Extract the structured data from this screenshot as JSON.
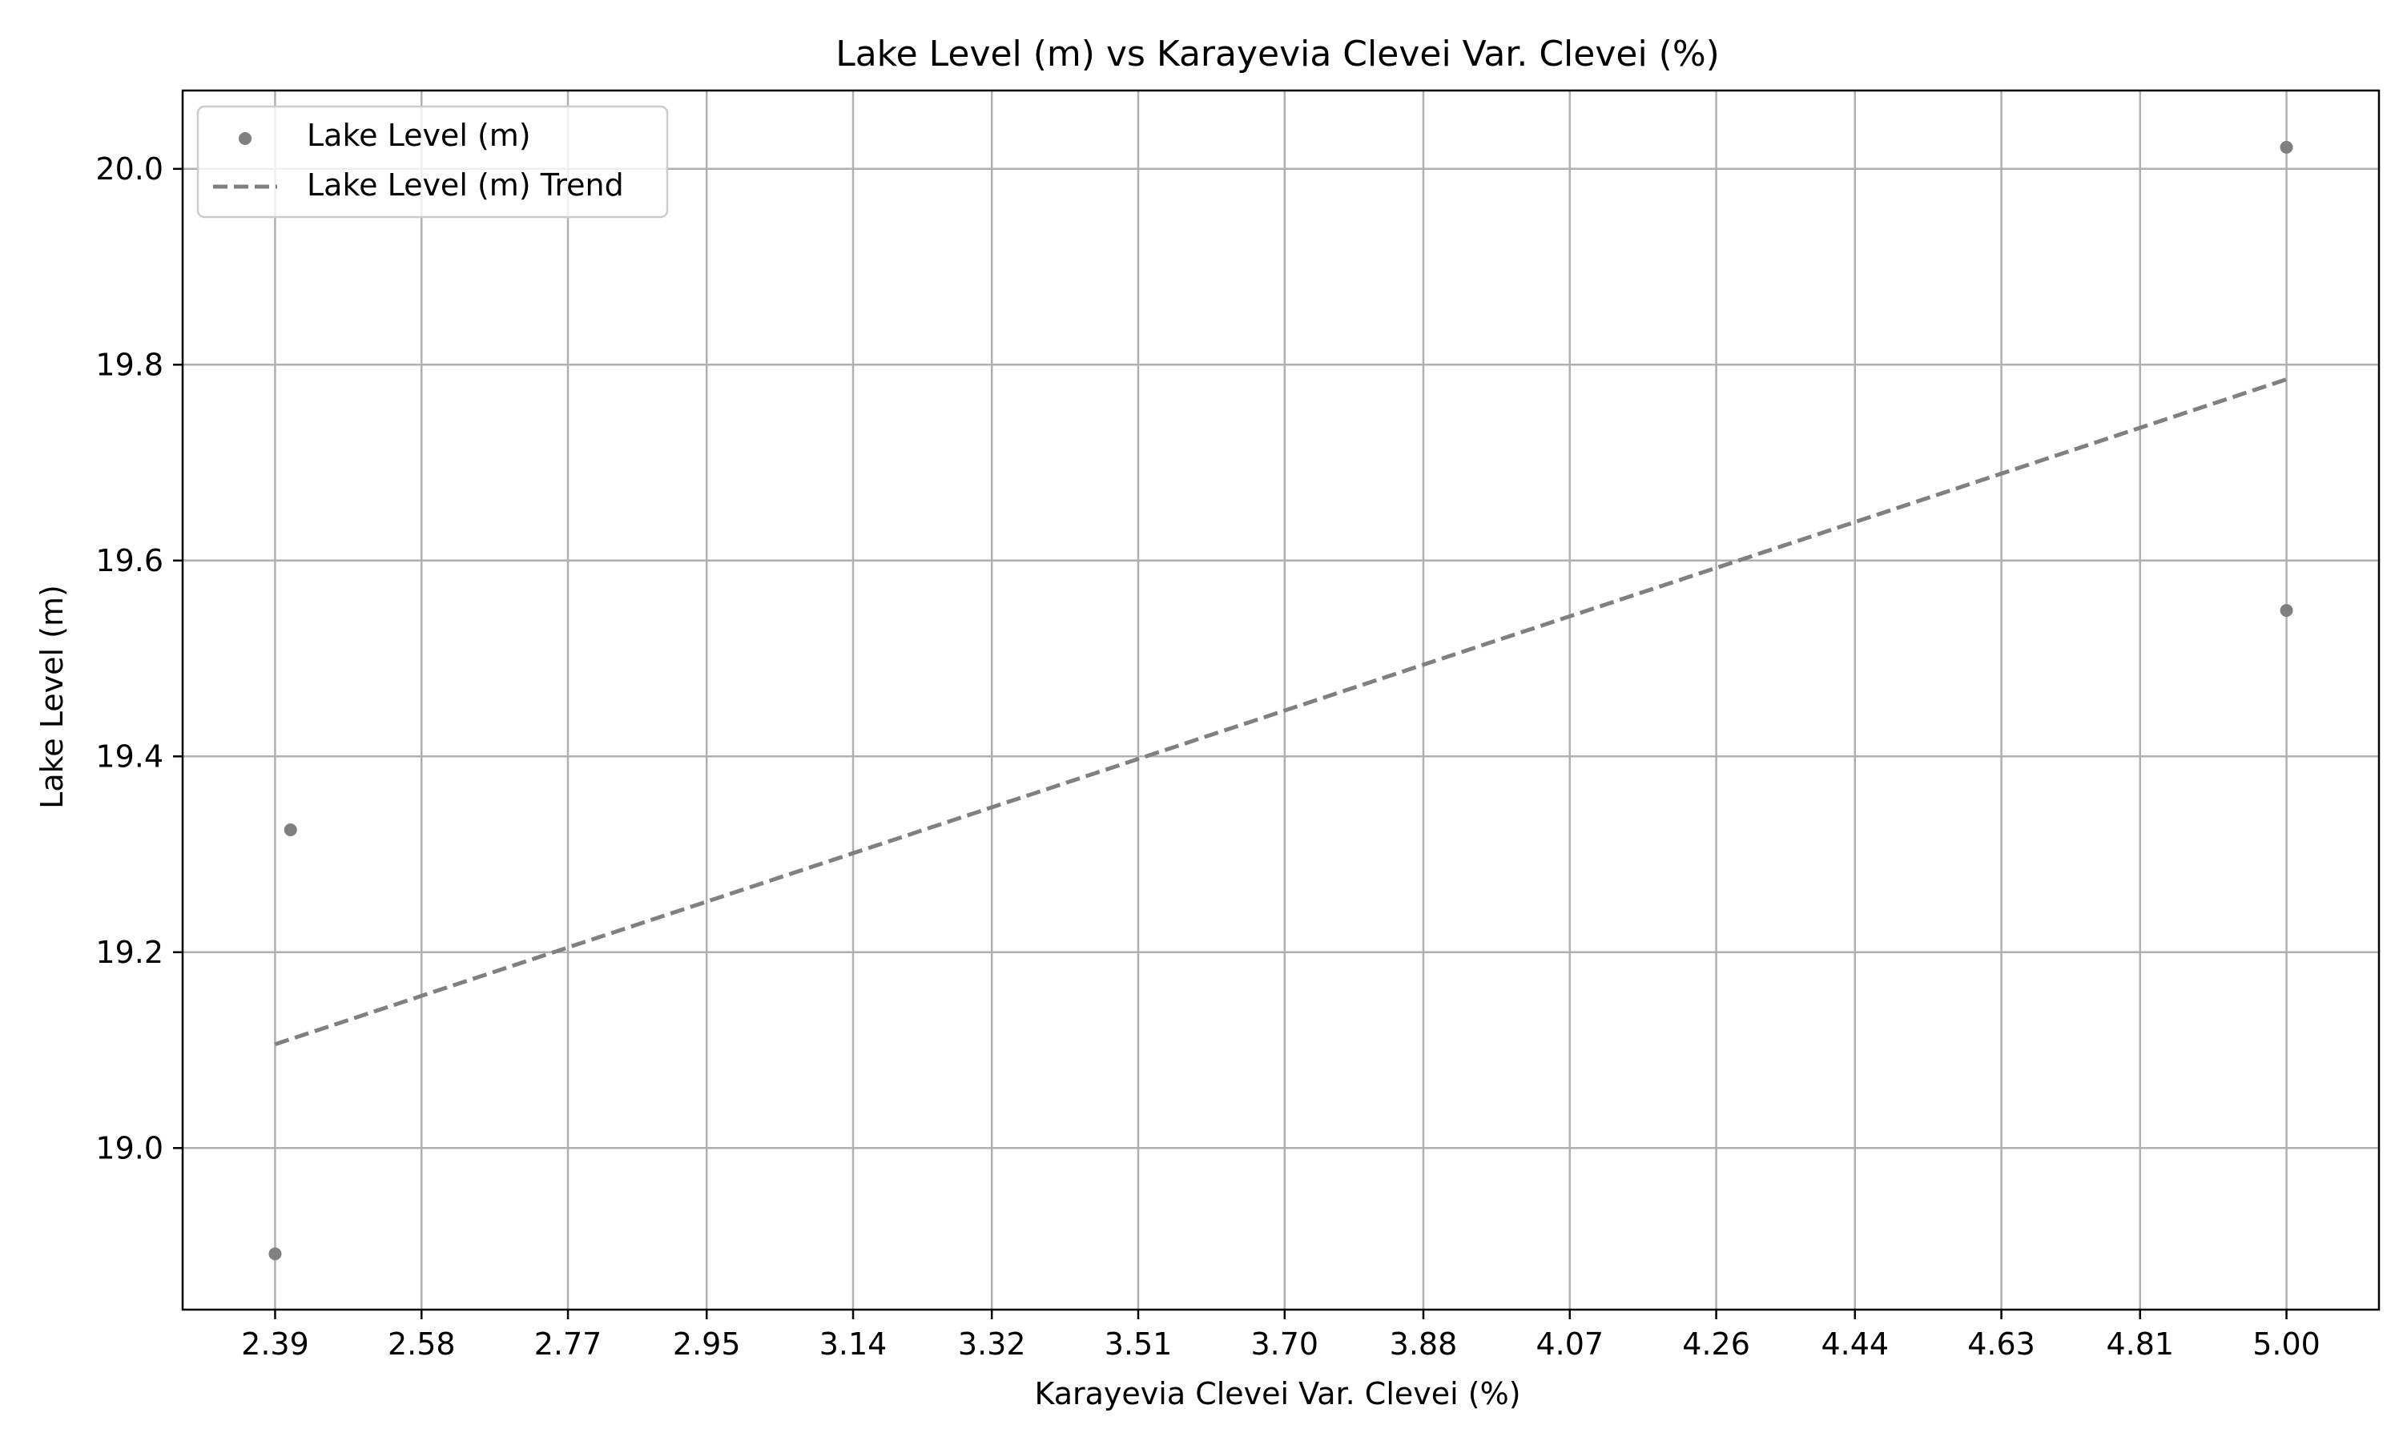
{
  "chart_data": {
    "type": "scatter",
    "title": "Lake Level (m) vs Karayevia Clevei Var. Clevei (%)",
    "xlabel": "Karayevia Clevei Var. Clevei (%)",
    "ylabel": "Lake Level (m)",
    "xlim": [
      2.27,
      5.12
    ],
    "ylim": [
      18.835,
      20.08
    ],
    "xticks": [
      "2.39",
      "2.58",
      "2.77",
      "2.95",
      "3.14",
      "3.32",
      "3.51",
      "3.70",
      "3.88",
      "4.07",
      "4.26",
      "4.44",
      "4.63",
      "4.81",
      "5.00"
    ],
    "yticks": [
      "19.0",
      "19.2",
      "19.4",
      "19.6",
      "19.8",
      "20.0"
    ],
    "grid": true,
    "legend_position": "upper-left",
    "series": [
      {
        "name": "Lake Level (m)",
        "kind": "scatter",
        "color": "#808080",
        "points": [
          {
            "x": 2.39,
            "y": 18.892
          },
          {
            "x": 2.41,
            "y": 19.325
          },
          {
            "x": 5.0,
            "y": 19.549
          },
          {
            "x": 5.0,
            "y": 20.022
          }
        ]
      },
      {
        "name": "Lake Level (m) Trend",
        "kind": "line",
        "style": "dashed",
        "color": "#808080",
        "points": [
          {
            "x": 2.39,
            "y": 19.106
          },
          {
            "x": 5.0,
            "y": 19.785
          }
        ]
      }
    ]
  }
}
